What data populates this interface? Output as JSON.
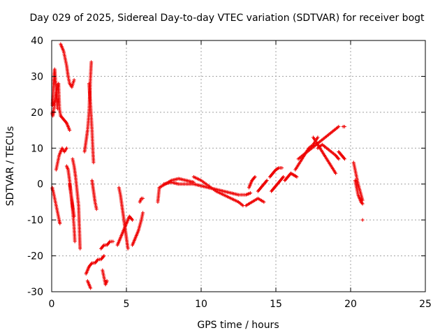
{
  "chart_data": {
    "type": "scatter",
    "title": "Day 029 of 2025, Sidereal Day-to-day VTEC variation (SDTVAR) for receiver bogt",
    "xlabel": "GPS time / hours",
    "ylabel": "SDTVAR / TECUs",
    "xlim": [
      0,
      25
    ],
    "ylim": [
      -30,
      40
    ],
    "xticks": [
      0,
      5,
      10,
      15,
      20,
      25
    ],
    "yticks": [
      -30,
      -20,
      -10,
      0,
      10,
      20,
      30,
      40
    ],
    "grid": true,
    "marker": "plus",
    "color": "#ee0000",
    "series": [
      {
        "name": "SDTVAR",
        "segments": [
          [
            [
              0.0,
              20
            ],
            [
              0.08,
              19
            ],
            [
              0.15,
              21
            ],
            [
              0.22,
              23
            ],
            [
              0.3,
              25
            ],
            [
              0.38,
              27
            ],
            [
              0.46,
              28
            ],
            [
              0.52,
              21
            ],
            [
              0.6,
              19
            ]
          ],
          [
            [
              0.05,
              22
            ],
            [
              0.1,
              26
            ],
            [
              0.15,
              30
            ],
            [
              0.2,
              32
            ],
            [
              0.25,
              29
            ],
            [
              0.3,
              27
            ],
            [
              0.35,
              24
            ],
            [
              0.4,
              21
            ]
          ],
          [
            [
              0.0,
              -1
            ],
            [
              0.1,
              -2
            ],
            [
              0.2,
              -4
            ],
            [
              0.3,
              -6
            ],
            [
              0.4,
              -8
            ],
            [
              0.5,
              -10
            ],
            [
              0.55,
              -11
            ]
          ],
          [
            [
              0.3,
              4
            ],
            [
              0.4,
              6
            ],
            [
              0.5,
              8
            ],
            [
              0.6,
              9
            ],
            [
              0.7,
              10
            ],
            [
              0.85,
              9
            ],
            [
              1.0,
              10
            ]
          ],
          [
            [
              0.6,
              19
            ],
            [
              0.8,
              18
            ],
            [
              1.0,
              17
            ],
            [
              1.1,
              16
            ],
            [
              1.2,
              15
            ]
          ],
          [
            [
              0.6,
              39
            ],
            [
              0.7,
              38
            ],
            [
              0.8,
              37
            ],
            [
              0.9,
              35
            ],
            [
              1.0,
              33
            ],
            [
              1.1,
              30
            ],
            [
              1.2,
              28
            ],
            [
              1.35,
              27
            ],
            [
              1.5,
              29
            ]
          ],
          [
            [
              1.0,
              5
            ],
            [
              1.1,
              4
            ],
            [
              1.2,
              1
            ],
            [
              1.3,
              -3
            ],
            [
              1.4,
              -7
            ],
            [
              1.5,
              -12
            ],
            [
              1.55,
              -16
            ]
          ],
          [
            [
              1.4,
              7
            ],
            [
              1.5,
              5
            ],
            [
              1.6,
              2
            ],
            [
              1.7,
              -2
            ],
            [
              1.8,
              -6
            ],
            [
              1.85,
              -12
            ],
            [
              1.9,
              -18
            ]
          ],
          [
            [
              1.2,
              0
            ],
            [
              1.3,
              -3
            ],
            [
              1.4,
              -6
            ],
            [
              1.5,
              -9
            ]
          ],
          [
            [
              2.2,
              9
            ],
            [
              2.3,
              12
            ],
            [
              2.4,
              15
            ],
            [
              2.5,
              20
            ],
            [
              2.55,
              25
            ],
            [
              2.6,
              30
            ],
            [
              2.65,
              34
            ]
          ],
          [
            [
              2.5,
              28
            ],
            [
              2.6,
              22
            ],
            [
              2.7,
              15
            ],
            [
              2.75,
              10
            ],
            [
              2.8,
              6
            ]
          ],
          [
            [
              2.7,
              1
            ],
            [
              2.8,
              -2
            ],
            [
              2.9,
              -5
            ],
            [
              3.0,
              -7
            ]
          ],
          [
            [
              2.3,
              -25
            ],
            [
              2.5,
              -23
            ],
            [
              2.7,
              -22
            ],
            [
              2.9,
              -22
            ],
            [
              3.1,
              -21
            ],
            [
              3.3,
              -21
            ],
            [
              3.5,
              -20
            ]
          ],
          [
            [
              2.4,
              -27
            ],
            [
              2.5,
              -28
            ],
            [
              2.6,
              -29
            ]
          ],
          [
            [
              3.3,
              -18
            ],
            [
              3.5,
              -17
            ],
            [
              3.7,
              -17
            ],
            [
              3.9,
              -16
            ],
            [
              4.1,
              -16
            ]
          ],
          [
            [
              3.4,
              -24
            ],
            [
              3.5,
              -26
            ],
            [
              3.6,
              -28
            ],
            [
              3.7,
              -27
            ]
          ],
          [
            [
              4.5,
              -1
            ],
            [
              4.6,
              -3
            ],
            [
              4.7,
              -6
            ],
            [
              4.8,
              -9
            ],
            [
              4.9,
              -12
            ],
            [
              5.0,
              -15
            ],
            [
              5.1,
              -18
            ]
          ],
          [
            [
              4.4,
              -17
            ],
            [
              4.6,
              -15
            ],
            [
              4.8,
              -13
            ],
            [
              5.0,
              -11
            ],
            [
              5.2,
              -9
            ],
            [
              5.4,
              -10
            ]
          ],
          [
            [
              5.4,
              -17
            ],
            [
              5.6,
              -15
            ],
            [
              5.8,
              -13
            ],
            [
              6.0,
              -10
            ],
            [
              6.1,
              -8
            ]
          ],
          [
            [
              5.9,
              -5
            ],
            [
              6.0,
              -4
            ],
            [
              6.1,
              -4
            ]
          ],
          [
            [
              7.1,
              -5
            ],
            [
              7.15,
              -3
            ],
            [
              7.2,
              -1
            ]
          ],
          [
            [
              7.2,
              -1
            ],
            [
              7.6,
              0
            ],
            [
              8.0,
              1
            ],
            [
              8.5,
              1.5
            ],
            [
              9.0,
              1
            ],
            [
              9.5,
              0.5
            ]
          ],
          [
            [
              7.5,
              0
            ],
            [
              8.0,
              0.5
            ],
            [
              8.5,
              0
            ],
            [
              9.0,
              0
            ],
            [
              9.5,
              0
            ],
            [
              10.0,
              -0.5
            ],
            [
              10.5,
              -1
            ],
            [
              11.0,
              -1.5
            ],
            [
              11.5,
              -2
            ],
            [
              12.0,
              -2.5
            ],
            [
              12.5,
              -3
            ],
            [
              13.0,
              -3
            ],
            [
              13.3,
              -2.5
            ]
          ],
          [
            [
              9.5,
              2
            ],
            [
              10.0,
              1
            ],
            [
              10.5,
              -0.5
            ],
            [
              11.0,
              -2
            ],
            [
              11.5,
              -3
            ],
            [
              12.0,
              -4
            ],
            [
              12.5,
              -5
            ],
            [
              12.8,
              -6
            ]
          ],
          [
            [
              13.2,
              -1
            ],
            [
              13.4,
              1
            ],
            [
              13.6,
              2
            ]
          ],
          [
            [
              13.0,
              -6
            ],
            [
              13.4,
              -5
            ],
            [
              13.8,
              -4
            ],
            [
              14.2,
              -5
            ]
          ],
          [
            [
              13.8,
              -2
            ],
            [
              14.0,
              -1
            ],
            [
              14.2,
              0
            ],
            [
              14.4,
              1
            ]
          ],
          [
            [
              14.6,
              2
            ],
            [
              14.8,
              3
            ],
            [
              15.0,
              4
            ],
            [
              15.2,
              4.5
            ],
            [
              15.4,
              4.5
            ]
          ],
          [
            [
              14.7,
              -2
            ],
            [
              14.9,
              -1
            ],
            [
              15.1,
              0
            ],
            [
              15.3,
              1
            ],
            [
              15.5,
              2
            ]
          ],
          [
            [
              15.6,
              1
            ],
            [
              15.8,
              2
            ],
            [
              16.0,
              3
            ],
            [
              16.2,
              2.5
            ],
            [
              16.4,
              2
            ]
          ],
          [
            [
              16.3,
              4
            ],
            [
              16.6,
              6
            ],
            [
              16.9,
              8
            ],
            [
              17.2,
              10
            ],
            [
              17.5,
              11
            ],
            [
              17.8,
              13
            ]
          ],
          [
            [
              16.5,
              7
            ],
            [
              16.8,
              8
            ],
            [
              17.1,
              9
            ],
            [
              17.4,
              10
            ],
            [
              17.7,
              11
            ],
            [
              18.0,
              12
            ],
            [
              18.3,
              13
            ],
            [
              18.6,
              14
            ],
            [
              18.9,
              15
            ],
            [
              19.2,
              16
            ]
          ],
          [
            [
              17.5,
              13
            ],
            [
              17.8,
              11
            ],
            [
              18.1,
              9
            ],
            [
              18.4,
              7
            ],
            [
              18.7,
              5
            ],
            [
              19.0,
              3
            ]
          ],
          [
            [
              17.8,
              10
            ],
            [
              18.1,
              11
            ],
            [
              18.4,
              10
            ],
            [
              18.7,
              9
            ],
            [
              19.0,
              8
            ],
            [
              19.2,
              7
            ]
          ],
          [
            [
              19.5,
              16
            ],
            [
              19.6,
              16
            ]
          ],
          [
            [
              19.2,
              9
            ],
            [
              19.4,
              8
            ],
            [
              19.6,
              7
            ]
          ],
          [
            [
              20.2,
              6
            ],
            [
              20.3,
              4
            ],
            [
              20.4,
              2
            ],
            [
              20.5,
              0
            ],
            [
              20.6,
              -1.5
            ],
            [
              20.7,
              -3
            ],
            [
              20.8,
              -4.5
            ]
          ],
          [
            [
              20.3,
              1
            ],
            [
              20.4,
              -1
            ],
            [
              20.5,
              -3
            ],
            [
              20.6,
              -4
            ],
            [
              20.7,
              -5
            ],
            [
              20.8,
              -5.5
            ]
          ],
          [
            [
              20.8,
              -10
            ]
          ]
        ]
      }
    ]
  }
}
